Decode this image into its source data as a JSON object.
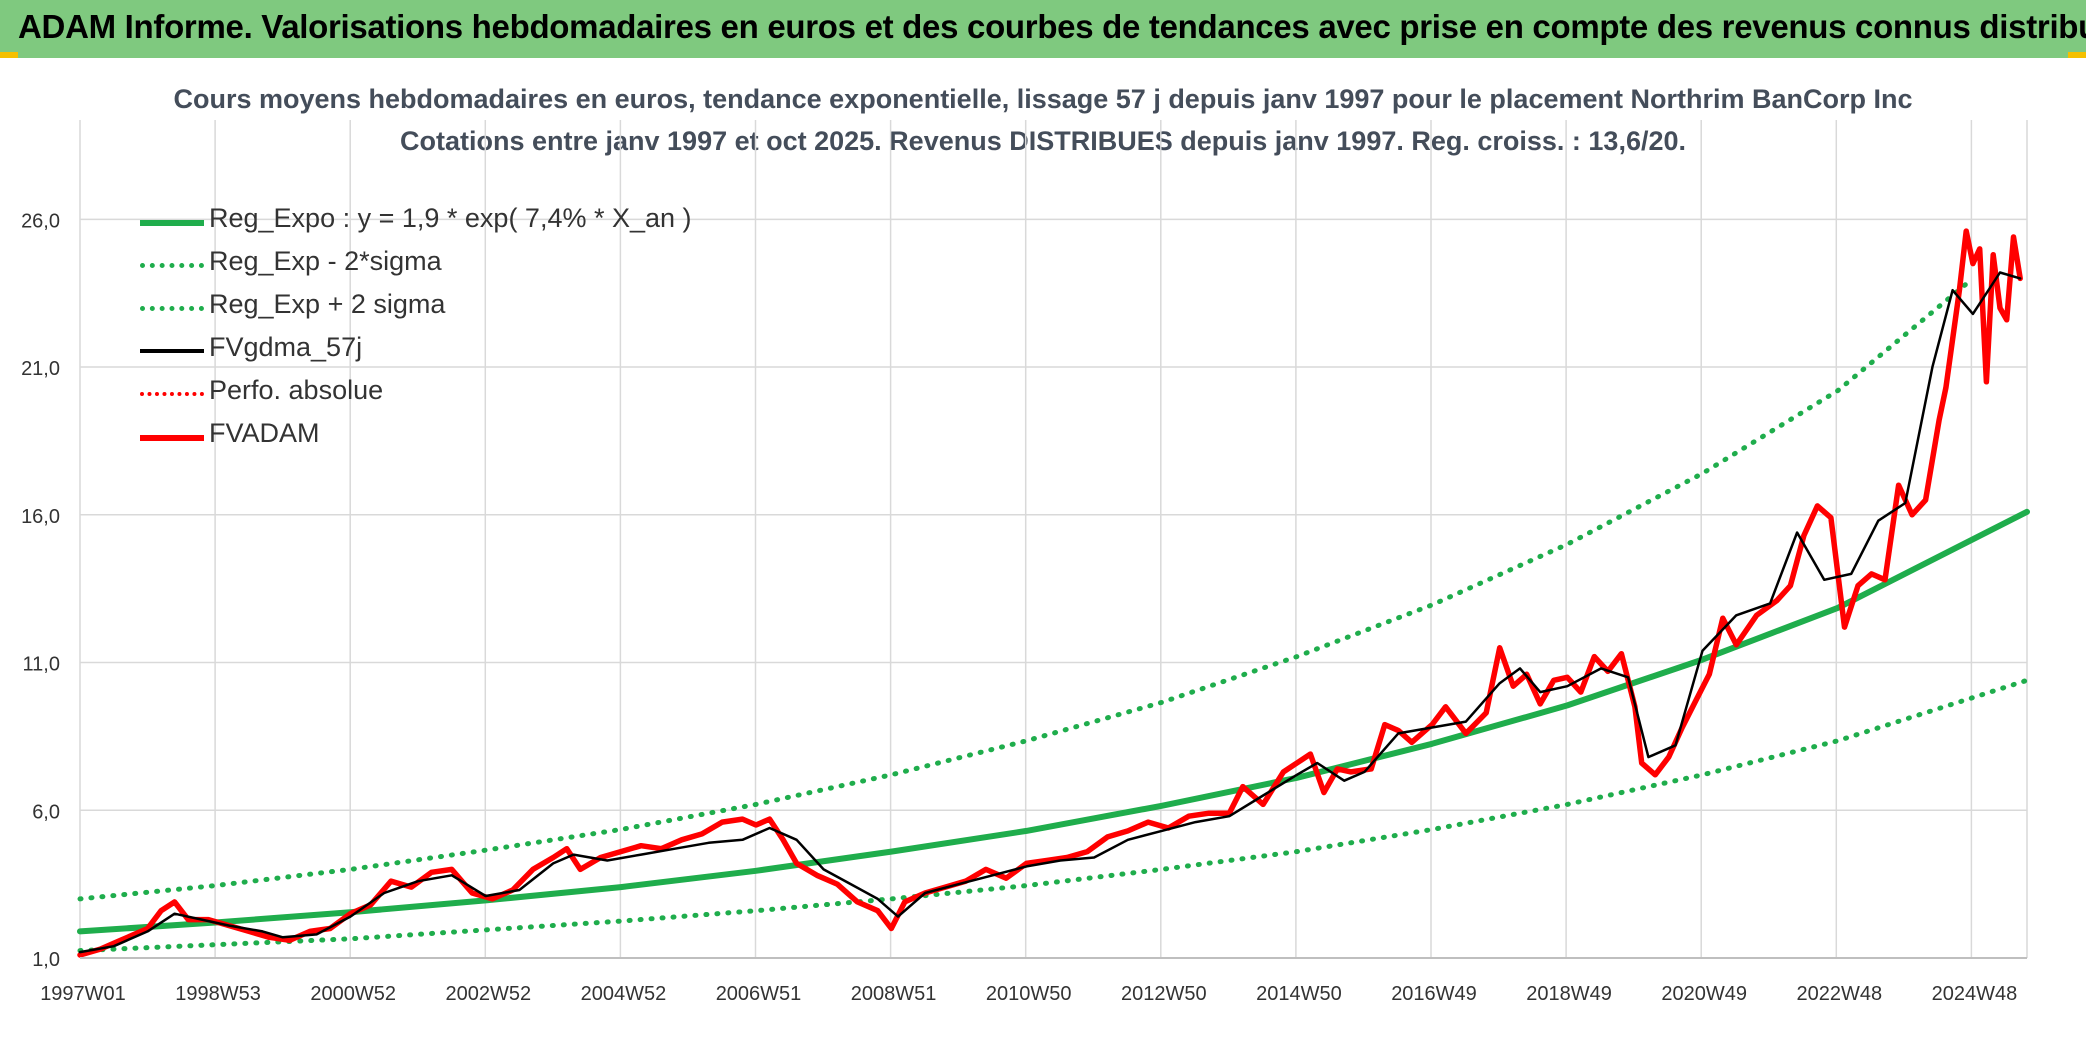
{
  "header": {
    "title": "ADAM Informe. Valorisations hebdomadaires en euros et des courbes de tendances avec prise en compte des revenus connus distribués"
  },
  "colors": {
    "header_bg": "#7fc97f",
    "green": "#1fad4c",
    "black": "#000000",
    "red": "#ff0000",
    "grid": "#d9d9d9",
    "text": "#444d5a"
  },
  "chart_data": {
    "type": "line",
    "title_line1": "Cours moyens hebdomadaires en euros, tendance exponentielle, lissage 57 j depuis janv 1997 pour le placement Northrim BanCorp Inc",
    "title_line2": "Cotations entre janv 1997 et oct 2025. Revenus DISTRIBUES depuis janv 1997. Reg. croiss. : 13,6/20.",
    "y_ticks": [
      "1,0",
      "6,0",
      "11,0",
      "16,0",
      "21,0",
      "26,0"
    ],
    "ylim": [
      1,
      27.5
    ],
    "x_ticks": [
      "1997W01",
      "1998W53",
      "2000W52",
      "2002W52",
      "2004W52",
      "2006W51",
      "2008W51",
      "2010W50",
      "2012W50",
      "2014W50",
      "2016W49",
      "2018W49",
      "2020W49",
      "2022W48",
      "2024W48"
    ],
    "xlim": [
      1997.0,
      2025.8
    ],
    "grid": true,
    "legend_position": "top-left",
    "legend": [
      {
        "label": "Reg_Expo : y = 1,9 * exp( 7,4% *  X_an )",
        "style": "solid-thick",
        "color": "#1fad4c"
      },
      {
        "label": "Reg_Exp - 2*sigma",
        "style": "dotted",
        "color": "#1fad4c"
      },
      {
        "label": "Reg_Exp + 2 sigma",
        "style": "dotted",
        "color": "#1fad4c"
      },
      {
        "label": "FVgdma_57j",
        "style": "solid",
        "color": "#000000"
      },
      {
        "label": "Perfo. absolue",
        "style": "dotted",
        "color": "#ff0000"
      },
      {
        "label": "FVADAM",
        "style": "solid-thick",
        "color": "#ff0000"
      }
    ],
    "series": [
      {
        "name": "Reg_Expo : y = 1,9 * exp( 7,4% *  X_an )",
        "x": [
          1997.0,
          1999.0,
          2001.0,
          2003.0,
          2005.0,
          2007.0,
          2009.0,
          2011.0,
          2013.0,
          2015.0,
          2017.0,
          2019.0,
          2021.0,
          2023.0,
          2025.8
        ],
        "values": [
          1.9,
          2.2,
          2.55,
          2.95,
          3.4,
          3.95,
          4.6,
          5.3,
          6.15,
          7.1,
          8.25,
          9.55,
          11.1,
          12.85,
          16.1
        ]
      },
      {
        "name": "Reg_Exp - 2*sigma",
        "x": [
          1997.0,
          1999.0,
          2001.0,
          2003.0,
          2005.0,
          2007.0,
          2009.0,
          2011.0,
          2013.0,
          2015.0,
          2017.0,
          2019.0,
          2021.0,
          2023.0,
          2025.8
        ],
        "values": [
          1.25,
          1.45,
          1.65,
          1.95,
          2.25,
          2.6,
          3.0,
          3.45,
          4.0,
          4.6,
          5.35,
          6.2,
          7.2,
          8.35,
          10.4
        ]
      },
      {
        "name": "Reg_Exp + 2 sigma",
        "x": [
          1997.0,
          1999.0,
          2001.0,
          2003.0,
          2005.0,
          2007.0,
          2009.0,
          2011.0,
          2013.0,
          2015.0,
          2017.0,
          2019.0,
          2021.0,
          2023.0,
          2025.0
        ],
        "values": [
          3.0,
          3.45,
          4.0,
          4.65,
          5.35,
          6.2,
          7.2,
          8.35,
          9.65,
          11.2,
          12.95,
          15.0,
          17.4,
          20.2,
          24.0
        ]
      },
      {
        "name": "FVgdma_57j",
        "x": [
          1997.0,
          1997.5,
          1998.0,
          1998.4,
          1998.8,
          1999.2,
          1999.7,
          2000.0,
          2000.5,
          2001.0,
          2001.5,
          2002.0,
          2002.5,
          2003.0,
          2003.5,
          2004.0,
          2004.3,
          2004.8,
          2005.3,
          2005.8,
          2006.3,
          2006.8,
          2007.2,
          2007.6,
          2008.0,
          2008.4,
          2008.8,
          2009.1,
          2009.5,
          2010.0,
          2010.5,
          2011.0,
          2011.5,
          2012.0,
          2012.5,
          2013.0,
          2013.5,
          2014.0,
          2014.5,
          2015.0,
          2015.3,
          2015.7,
          2016.0,
          2016.5,
          2017.0,
          2017.5,
          2018.0,
          2018.3,
          2018.6,
          2019.0,
          2019.5,
          2019.9,
          2020.2,
          2020.6,
          2021.0,
          2021.5,
          2022.0,
          2022.4,
          2022.8,
          2023.2,
          2023.6,
          2024.0,
          2024.4,
          2024.7,
          2025.0,
          2025.4,
          2025.7
        ],
        "values": [
          1.2,
          1.4,
          1.9,
          2.5,
          2.3,
          2.1,
          1.9,
          1.7,
          1.8,
          2.4,
          3.2,
          3.6,
          3.8,
          3.1,
          3.3,
          4.2,
          4.5,
          4.3,
          4.5,
          4.7,
          4.9,
          5.0,
          5.4,
          5.0,
          4.0,
          3.5,
          3.0,
          2.4,
          3.2,
          3.5,
          3.8,
          4.1,
          4.3,
          4.4,
          5.0,
          5.3,
          5.6,
          5.8,
          6.5,
          7.2,
          7.6,
          7.0,
          7.3,
          8.6,
          8.8,
          9.0,
          10.3,
          10.8,
          10.0,
          10.2,
          10.8,
          10.5,
          7.8,
          8.2,
          11.4,
          12.6,
          13.0,
          15.4,
          13.8,
          14.0,
          15.8,
          16.4,
          21.0,
          23.6,
          22.8,
          24.2,
          24.0
        ]
      },
      {
        "name": "FVADAM",
        "x": [
          1997.0,
          1997.3,
          1997.6,
          1998.0,
          1998.2,
          1998.4,
          1998.6,
          1998.9,
          1999.2,
          1999.5,
          1999.8,
          2000.1,
          2000.4,
          2000.7,
          2001.0,
          2001.3,
          2001.6,
          2001.9,
          2002.2,
          2002.5,
          2002.8,
          2003.1,
          2003.4,
          2003.7,
          2004.0,
          2004.2,
          2004.4,
          2004.7,
          2005.0,
          2005.3,
          2005.6,
          2005.9,
          2006.2,
          2006.5,
          2006.8,
          2007.0,
          2007.2,
          2007.4,
          2007.6,
          2007.9,
          2008.2,
          2008.5,
          2008.8,
          2009.0,
          2009.2,
          2009.5,
          2009.8,
          2010.1,
          2010.4,
          2010.7,
          2011.0,
          2011.3,
          2011.6,
          2011.9,
          2012.2,
          2012.5,
          2012.8,
          2013.1,
          2013.4,
          2013.7,
          2014.0,
          2014.2,
          2014.5,
          2014.8,
          2015.0,
          2015.2,
          2015.4,
          2015.6,
          2015.8,
          2016.1,
          2016.3,
          2016.5,
          2016.7,
          2017.0,
          2017.2,
          2017.5,
          2017.8,
          2018.0,
          2018.2,
          2018.4,
          2018.6,
          2018.8,
          2019.0,
          2019.2,
          2019.4,
          2019.6,
          2019.8,
          2020.0,
          2020.1,
          2020.3,
          2020.5,
          2020.7,
          2020.9,
          2021.1,
          2021.3,
          2021.5,
          2021.8,
          2022.1,
          2022.3,
          2022.5,
          2022.7,
          2022.9,
          2023.1,
          2023.3,
          2023.5,
          2023.7,
          2023.9,
          2024.1,
          2024.3,
          2024.5,
          2024.6,
          2024.8,
          2024.9,
          2025.0,
          2025.1,
          2025.2,
          2025.3,
          2025.4,
          2025.5,
          2025.6,
          2025.7
        ],
        "values": [
          1.1,
          1.3,
          1.6,
          2.0,
          2.6,
          2.9,
          2.3,
          2.3,
          2.1,
          1.9,
          1.7,
          1.6,
          1.9,
          2.0,
          2.5,
          2.8,
          3.6,
          3.4,
          3.9,
          4.0,
          3.2,
          3.0,
          3.3,
          4.0,
          4.4,
          4.7,
          4.0,
          4.4,
          4.6,
          4.8,
          4.7,
          5.0,
          5.2,
          5.6,
          5.7,
          5.5,
          5.7,
          5.0,
          4.2,
          3.8,
          3.5,
          2.9,
          2.6,
          2.0,
          2.9,
          3.2,
          3.4,
          3.6,
          4.0,
          3.7,
          4.2,
          4.3,
          4.4,
          4.6,
          5.1,
          5.3,
          5.6,
          5.4,
          5.8,
          5.9,
          5.9,
          6.8,
          6.2,
          7.3,
          7.6,
          7.9,
          6.6,
          7.4,
          7.3,
          7.4,
          8.9,
          8.7,
          8.3,
          8.9,
          9.5,
          8.6,
          9.3,
          11.5,
          10.2,
          10.6,
          9.6,
          10.4,
          10.5,
          10.0,
          11.2,
          10.7,
          11.3,
          9.5,
          7.6,
          7.2,
          7.8,
          8.8,
          9.7,
          10.6,
          12.5,
          11.6,
          12.6,
          13.1,
          13.6,
          15.3,
          16.3,
          15.9,
          12.2,
          13.6,
          14.0,
          13.8,
          17.0,
          16.0,
          16.5,
          19.2,
          20.3,
          23.6,
          25.6,
          24.5,
          25.0,
          20.5,
          24.8,
          23.0,
          22.6,
          25.4,
          24.0
        ]
      }
    ]
  }
}
